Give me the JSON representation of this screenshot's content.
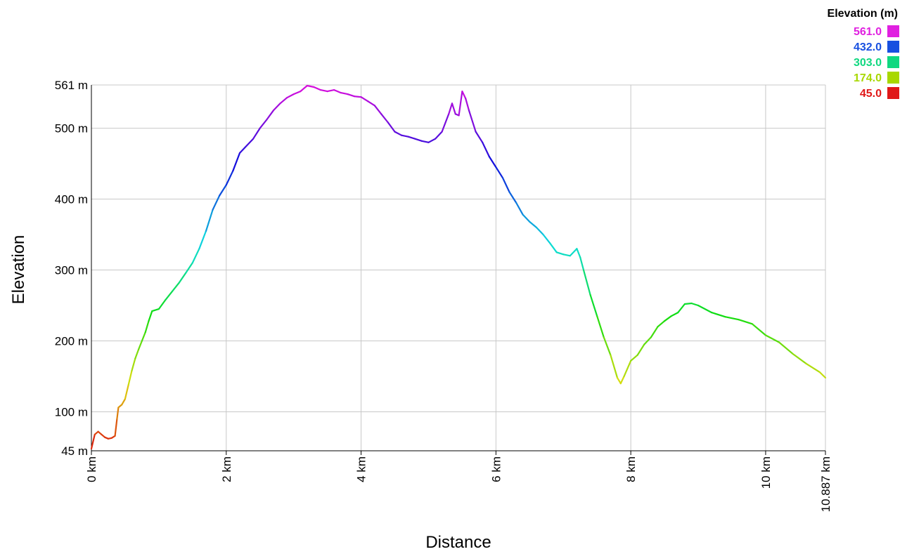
{
  "chart_data": {
    "type": "line",
    "title": "",
    "xlabel": "Distance",
    "ylabel": "Elevation",
    "xlim": [
      0,
      10.887
    ],
    "ylim": [
      45,
      561
    ],
    "grid": true,
    "legend_position": "top-right",
    "x_ticks": [
      {
        "value": 0,
        "label": "0 km"
      },
      {
        "value": 2,
        "label": "2 km"
      },
      {
        "value": 4,
        "label": "4 km"
      },
      {
        "value": 6,
        "label": "6 km"
      },
      {
        "value": 8,
        "label": "8 km"
      },
      {
        "value": 10,
        "label": "10 km"
      },
      {
        "value": 10.887,
        "label": "10.887 km"
      }
    ],
    "y_ticks": [
      {
        "value": 45,
        "label": "45 m"
      },
      {
        "value": 100,
        "label": "100 m"
      },
      {
        "value": 200,
        "label": "200 m"
      },
      {
        "value": 300,
        "label": "300 m"
      },
      {
        "value": 400,
        "label": "400 m"
      },
      {
        "value": 500,
        "label": "500 m"
      },
      {
        "value": 561,
        "label": "561 m"
      }
    ],
    "legend": {
      "title": "Elevation (m)",
      "entries": [
        {
          "label": "561.0",
          "color": "#e020e0"
        },
        {
          "label": "432.0",
          "color": "#1850e0"
        },
        {
          "label": "303.0",
          "color": "#10d880"
        },
        {
          "label": "174.0",
          "color": "#a8d800"
        },
        {
          "label": "45.0",
          "color": "#e01818"
        }
      ]
    },
    "series": [
      {
        "x": [
          0,
          0.05,
          0.1,
          0.15,
          0.2,
          0.25,
          0.3,
          0.35,
          0.38,
          0.4,
          0.45,
          0.5,
          0.55,
          0.6,
          0.65,
          0.7,
          0.75,
          0.8,
          0.85,
          0.9,
          1.0,
          1.1,
          1.2,
          1.3,
          1.4,
          1.5,
          1.6,
          1.7,
          1.8,
          1.9,
          2.0,
          2.1,
          2.2,
          2.3,
          2.4,
          2.5,
          2.6,
          2.7,
          2.8,
          2.9,
          3.0,
          3.1,
          3.2,
          3.3,
          3.4,
          3.5,
          3.6,
          3.7,
          3.8,
          3.9,
          4.0,
          4.1,
          4.2,
          4.3,
          4.4,
          4.5,
          4.6,
          4.7,
          4.8,
          4.9,
          5.0,
          5.1,
          5.2,
          5.3,
          5.35,
          5.4,
          5.45,
          5.5,
          5.55,
          5.6,
          5.7,
          5.8,
          5.9,
          6.0,
          6.1,
          6.2,
          6.3,
          6.4,
          6.5,
          6.6,
          6.7,
          6.8,
          6.9,
          7.0,
          7.1,
          7.2,
          7.25,
          7.3,
          7.4,
          7.5,
          7.6,
          7.7,
          7.8,
          7.85,
          7.9,
          8.0,
          8.1,
          8.2,
          8.3,
          8.4,
          8.5,
          8.6,
          8.7,
          8.8,
          8.9,
          9.0,
          9.2,
          9.4,
          9.6,
          9.8,
          10.0,
          10.2,
          10.4,
          10.6,
          10.8,
          10.887
        ],
        "values": [
          48,
          68,
          72,
          68,
          64,
          62,
          63,
          66,
          90,
          106,
          110,
          118,
          138,
          158,
          175,
          188,
          200,
          212,
          228,
          242,
          245,
          258,
          270,
          282,
          296,
          310,
          330,
          355,
          385,
          405,
          420,
          440,
          465,
          475,
          485,
          500,
          512,
          525,
          535,
          543,
          548,
          552,
          560,
          558,
          554,
          552,
          554,
          550,
          548,
          545,
          544,
          538,
          532,
          520,
          508,
          495,
          490,
          488,
          485,
          482,
          480,
          485,
          495,
          520,
          535,
          520,
          518,
          552,
          542,
          525,
          495,
          480,
          460,
          445,
          430,
          410,
          395,
          378,
          368,
          360,
          350,
          338,
          325,
          322,
          320,
          330,
          318,
          300,
          265,
          235,
          205,
          180,
          148,
          140,
          150,
          172,
          180,
          195,
          205,
          220,
          228,
          235,
          240,
          252,
          253,
          250,
          240,
          234,
          230,
          224,
          208,
          198,
          182,
          168,
          156,
          148
        ]
      }
    ]
  }
}
